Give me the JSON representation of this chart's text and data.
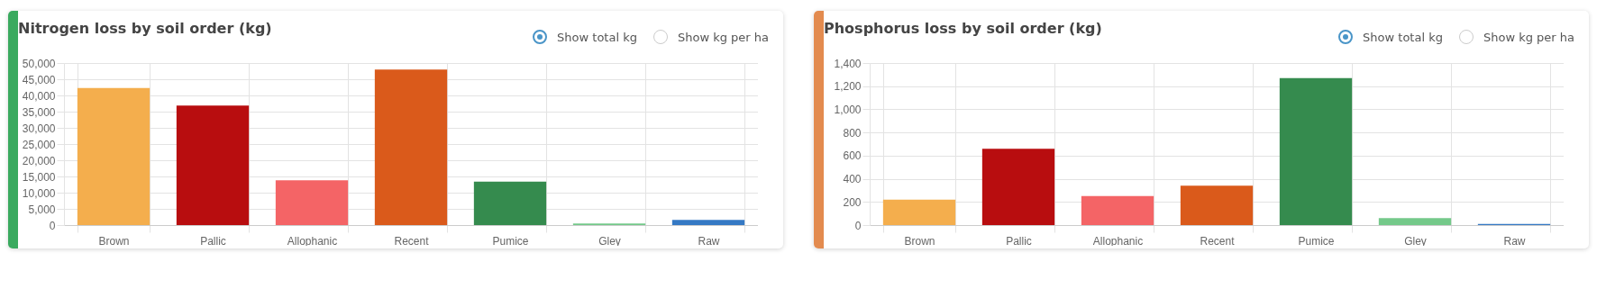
{
  "chart_data": [
    {
      "type": "bar",
      "title": "Nitrogen loss by soil order (kg)",
      "categories": [
        "Brown",
        "Pallic",
        "Allophanic",
        "Recent",
        "Pumice",
        "Gley",
        "Raw"
      ],
      "values": [
        42300,
        36900,
        13800,
        48000,
        13400,
        500,
        1600
      ],
      "colors": [
        "#f4ae4d",
        "#b80d0f",
        "#f46466",
        "#da5a1b",
        "#358b4e",
        "#74c98a",
        "#3579c4"
      ],
      "ylim": [
        0,
        50000
      ],
      "yticks": [
        0,
        {
          "value": 5000,
          "label": "5,000"
        },
        {
          "value": 10000,
          "label": "10,000"
        },
        {
          "value": 15000,
          "label": "15,000"
        },
        {
          "value": 20000,
          "label": "20,000"
        },
        {
          "value": 25000,
          "label": "25,000"
        },
        {
          "value": 30000,
          "label": "30,000"
        },
        {
          "value": 35000,
          "label": "35,000"
        },
        {
          "value": 40000,
          "label": "40,000"
        },
        {
          "value": 45000,
          "label": "45,000"
        },
        {
          "value": 50000,
          "label": "50,000"
        }
      ],
      "grid": true,
      "annotations": [
        "Show total kg",
        "Show kg per ha"
      ]
    },
    {
      "type": "bar",
      "title": "Phosphorus loss by soil order (kg)",
      "categories": [
        "Brown",
        "Pallic",
        "Allophanic",
        "Recent",
        "Pumice",
        "Gley",
        "Raw"
      ],
      "values": [
        220,
        660,
        250,
        340,
        1270,
        60,
        10
      ],
      "colors": [
        "#f4ae4d",
        "#b80d0f",
        "#f46466",
        "#da5a1b",
        "#358b4e",
        "#74c98a",
        "#3579c4"
      ],
      "ylim": [
        0,
        1400
      ],
      "yticks": [
        0,
        200,
        400,
        600,
        800,
        {
          "value": 1000,
          "label": "1,000"
        },
        {
          "value": 1200,
          "label": "1,200"
        },
        {
          "value": 1400,
          "label": "1,400"
        }
      ],
      "grid": true,
      "annotations": [
        "Show total kg",
        "Show kg per ha"
      ]
    }
  ]
}
